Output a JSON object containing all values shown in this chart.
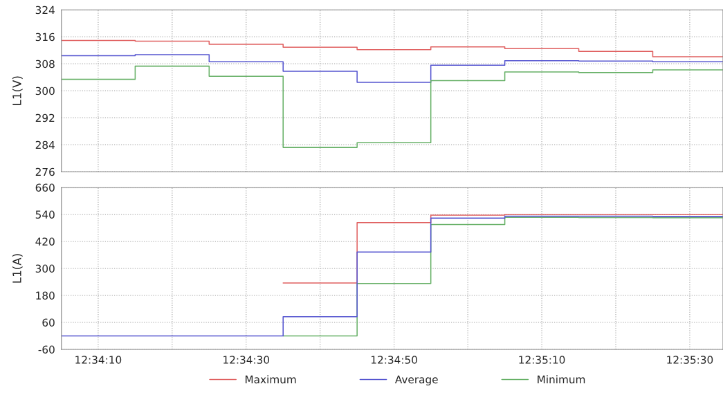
{
  "chart_data": [
    {
      "type": "step",
      "ylabel": "L1(V)",
      "x": [
        12.56806,
        12.57083,
        12.57361,
        12.57639,
        12.57917,
        12.58194,
        12.58472,
        12.5875,
        12.59028,
        12.59292
      ],
      "series": [
        {
          "name": "Maximum",
          "color": "#e06060",
          "values": [
            314.9,
            314.7,
            313.8,
            312.9,
            312.2,
            313.0,
            312.5,
            311.7,
            310.1,
            310.1
          ]
        },
        {
          "name": "Average",
          "color": "#5555d0",
          "values": [
            310.4,
            310.7,
            308.6,
            305.8,
            302.5,
            307.6,
            308.9,
            308.8,
            308.6,
            308.6
          ]
        },
        {
          "name": "Minimum",
          "color": "#66b066",
          "values": [
            303.4,
            307.3,
            304.3,
            283.2,
            284.6,
            303.0,
            305.6,
            305.4,
            306.2,
            306.2
          ]
        }
      ],
      "xlim": [
        12.56806,
        12.59292
      ],
      "ylim": [
        276,
        324
      ],
      "yticks": [
        276,
        284,
        292,
        300,
        308,
        316,
        324
      ],
      "xticks": [
        {
          "value": 12.56944,
          "label": null
        },
        {
          "value": 12.57222,
          "label": null
        },
        {
          "value": 12.575,
          "label": null
        },
        {
          "value": 12.57778,
          "label": null
        },
        {
          "value": 12.58056,
          "label": null
        },
        {
          "value": 12.58333,
          "label": null
        },
        {
          "value": 12.58611,
          "label": null
        },
        {
          "value": 12.58889,
          "label": null
        },
        {
          "value": 12.59167,
          "label": null
        }
      ],
      "tick_labels": "y",
      "grid": true,
      "legend": "bottom",
      "line_style": "solid"
    },
    {
      "type": "step",
      "ylabel": "L1(A)",
      "x": [
        12.56806,
        12.57083,
        12.57361,
        12.57639,
        12.57917,
        12.58194,
        12.58472,
        12.5875,
        12.59028,
        12.59292
      ],
      "series": [
        {
          "name": "Maximum",
          "color": "#e06060",
          "values": [
            null,
            null,
            null,
            235,
            504,
            537,
            540,
            540,
            540,
            540
          ]
        },
        {
          "name": "Minimum",
          "color": "#66b066",
          "values": [
            null,
            null,
            null,
            0,
            233,
            495,
            527,
            526,
            525,
            525
          ]
        },
        {
          "name": "Average",
          "color": "#5555d0",
          "values": [
            0,
            0,
            0,
            85,
            373,
            524,
            532,
            532,
            531,
            531
          ]
        }
      ],
      "xlim": [
        12.56806,
        12.59292
      ],
      "ylim": [
        -60,
        660
      ],
      "yticks": [
        -60,
        60,
        180,
        300,
        420,
        540,
        660
      ],
      "xticks": [
        {
          "value": 12.56944,
          "label": "12:34:10"
        },
        {
          "value": 12.57222,
          "label": null
        },
        {
          "value": 12.575,
          "label": "12:34:30"
        },
        {
          "value": 12.57778,
          "label": null
        },
        {
          "value": 12.58056,
          "label": "12:34:50"
        },
        {
          "value": 12.58333,
          "label": null
        },
        {
          "value": 12.58611,
          "label": "12:35:10"
        },
        {
          "value": 12.58889,
          "label": null
        },
        {
          "value": 12.59167,
          "label": "12:35:30"
        }
      ],
      "grid": true,
      "legend": "bottom",
      "line_style": "solid"
    }
  ]
}
